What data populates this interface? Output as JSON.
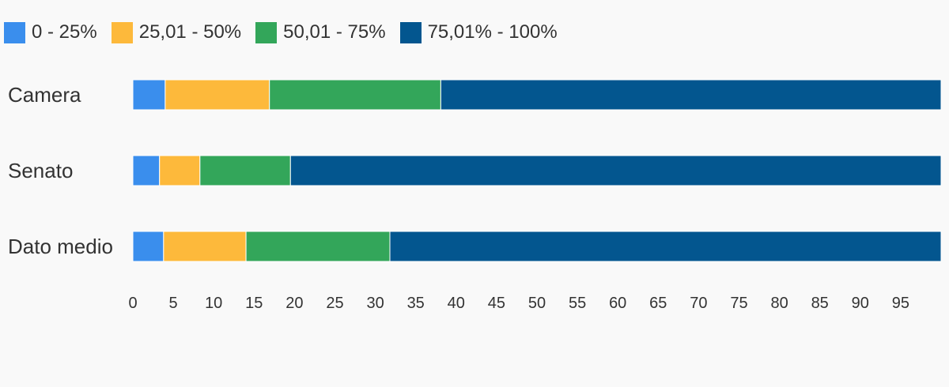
{
  "chart_data": {
    "type": "bar",
    "orientation": "horizontal",
    "stacked": true,
    "categories": [
      "Camera",
      "Senato",
      "Dato medio"
    ],
    "series": [
      {
        "name": "0 - 25%",
        "color": "#3a8eed",
        "values": [
          4,
          3.3,
          3.8
        ]
      },
      {
        "name": "25,01 - 50%",
        "color": "#fdb93b",
        "values": [
          12.9,
          5,
          10.2
        ]
      },
      {
        "name": "50,01 - 75%",
        "color": "#33a65a",
        "values": [
          21.2,
          11.2,
          17.8
        ]
      },
      {
        "name": "75,01% - 100%",
        "color": "#03568f",
        "values": [
          61.9,
          80.5,
          68.2
        ]
      }
    ],
    "xlim": [
      0,
      100
    ],
    "x_ticks": [
      "0",
      "5",
      "10",
      "15",
      "20",
      "25",
      "30",
      "35",
      "40",
      "45",
      "50",
      "55",
      "60",
      "65",
      "70",
      "75",
      "80",
      "85",
      "90",
      "95"
    ],
    "grid": false,
    "legend_position": "top-left"
  }
}
